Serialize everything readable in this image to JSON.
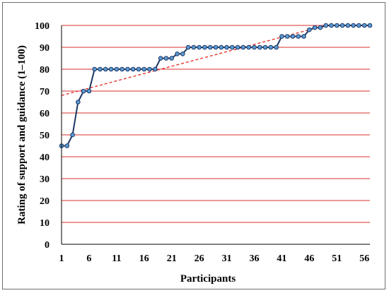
{
  "chart_data": {
    "type": "line",
    "title": "",
    "xlabel": "Participants",
    "ylabel": "Rating of support and guidance (1–100)",
    "xlim": [
      1,
      57
    ],
    "ylim": [
      0,
      100
    ],
    "x_tick_labels": [
      "1",
      "6",
      "11",
      "16",
      "21",
      "26",
      "31",
      "36",
      "41",
      "46",
      "51",
      "56"
    ],
    "y_tick_labels": [
      "0",
      "10",
      "20",
      "30",
      "40",
      "50",
      "60",
      "70",
      "80",
      "90",
      "100"
    ],
    "grid": true,
    "legend": "none",
    "colors": {
      "series_line": "#1f3864",
      "marker_fill": "#5b9bd5",
      "marker_edge": "#1f3864",
      "gridline": "#d9302c",
      "trendline": "#e0261c"
    },
    "series": [
      {
        "x": [
          1,
          2,
          3,
          4,
          5,
          6,
          7,
          8,
          9,
          10,
          11,
          12,
          13,
          14,
          15,
          16,
          17,
          18,
          19,
          20,
          21,
          22,
          23,
          24,
          25,
          26,
          27,
          28,
          29,
          30,
          31,
          32,
          33,
          34,
          35,
          36,
          37,
          38,
          39,
          40,
          41,
          42,
          43,
          44,
          45,
          46,
          47,
          48,
          49,
          50,
          51,
          52,
          53,
          54,
          55,
          56,
          57
        ],
        "values": [
          45,
          45,
          50,
          65,
          70,
          70,
          80,
          80,
          80,
          80,
          80,
          80,
          80,
          80,
          80,
          80,
          80,
          80,
          85,
          85,
          85,
          87,
          87,
          90,
          90,
          90,
          90,
          90,
          90,
          90,
          90,
          90,
          90,
          90,
          90,
          90,
          90,
          90,
          90,
          90,
          95,
          95,
          95,
          95,
          95,
          98,
          99,
          99,
          100,
          100,
          100,
          100,
          100,
          100,
          100,
          100,
          100
        ]
      }
    ],
    "trendline": {
      "type": "linear",
      "style": "dashed",
      "x": [
        1,
        49
      ],
      "y": [
        68,
        100
      ]
    }
  }
}
